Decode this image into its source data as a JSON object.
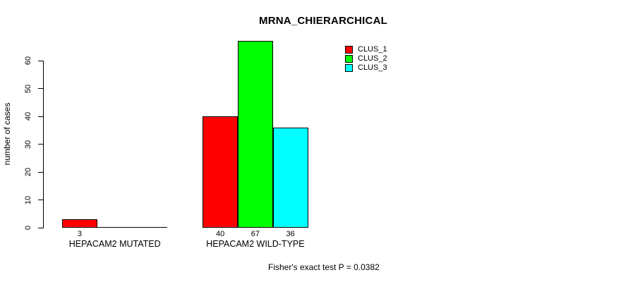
{
  "title": "MRNA_CHIERARCHICAL",
  "y_axis_label": "number of cases",
  "footer": "Fisher's exact test P = 0.0382",
  "colors": {
    "clus_1": "#ff0000",
    "clus_2": "#00ff00",
    "clus_3": "#00ffff",
    "axis": "#000000",
    "background": "#ffffff"
  },
  "legend": [
    {
      "label": "CLUS_1",
      "color": "#ff0000"
    },
    {
      "label": "CLUS_2",
      "color": "#00ff00"
    },
    {
      "label": "CLUS_3",
      "color": "#00ffff"
    }
  ],
  "chart_data": {
    "type": "bar",
    "title": "MRNA_CHIERARCHICAL",
    "xlabel": "",
    "ylabel": "number of cases",
    "categories": [
      "HEPACAM2 MUTATED",
      "HEPACAM2 WILD-TYPE"
    ],
    "series": [
      {
        "name": "CLUS_1",
        "color": "#ff0000",
        "values": [
          3,
          40
        ]
      },
      {
        "name": "CLUS_2",
        "color": "#00ff00",
        "values": [
          0,
          67
        ]
      },
      {
        "name": "CLUS_3",
        "color": "#00ffff",
        "values": [
          0,
          36
        ]
      }
    ],
    "value_labels": [
      [
        "3",
        "",
        ""
      ],
      [
        "40",
        "67",
        "36"
      ]
    ],
    "ylim": [
      0,
      60
    ],
    "yticks": [
      0,
      10,
      20,
      30,
      40,
      50,
      60
    ],
    "grid": false,
    "legend_position": "top-right",
    "annotation": "Fisher's exact test P = 0.0382"
  }
}
